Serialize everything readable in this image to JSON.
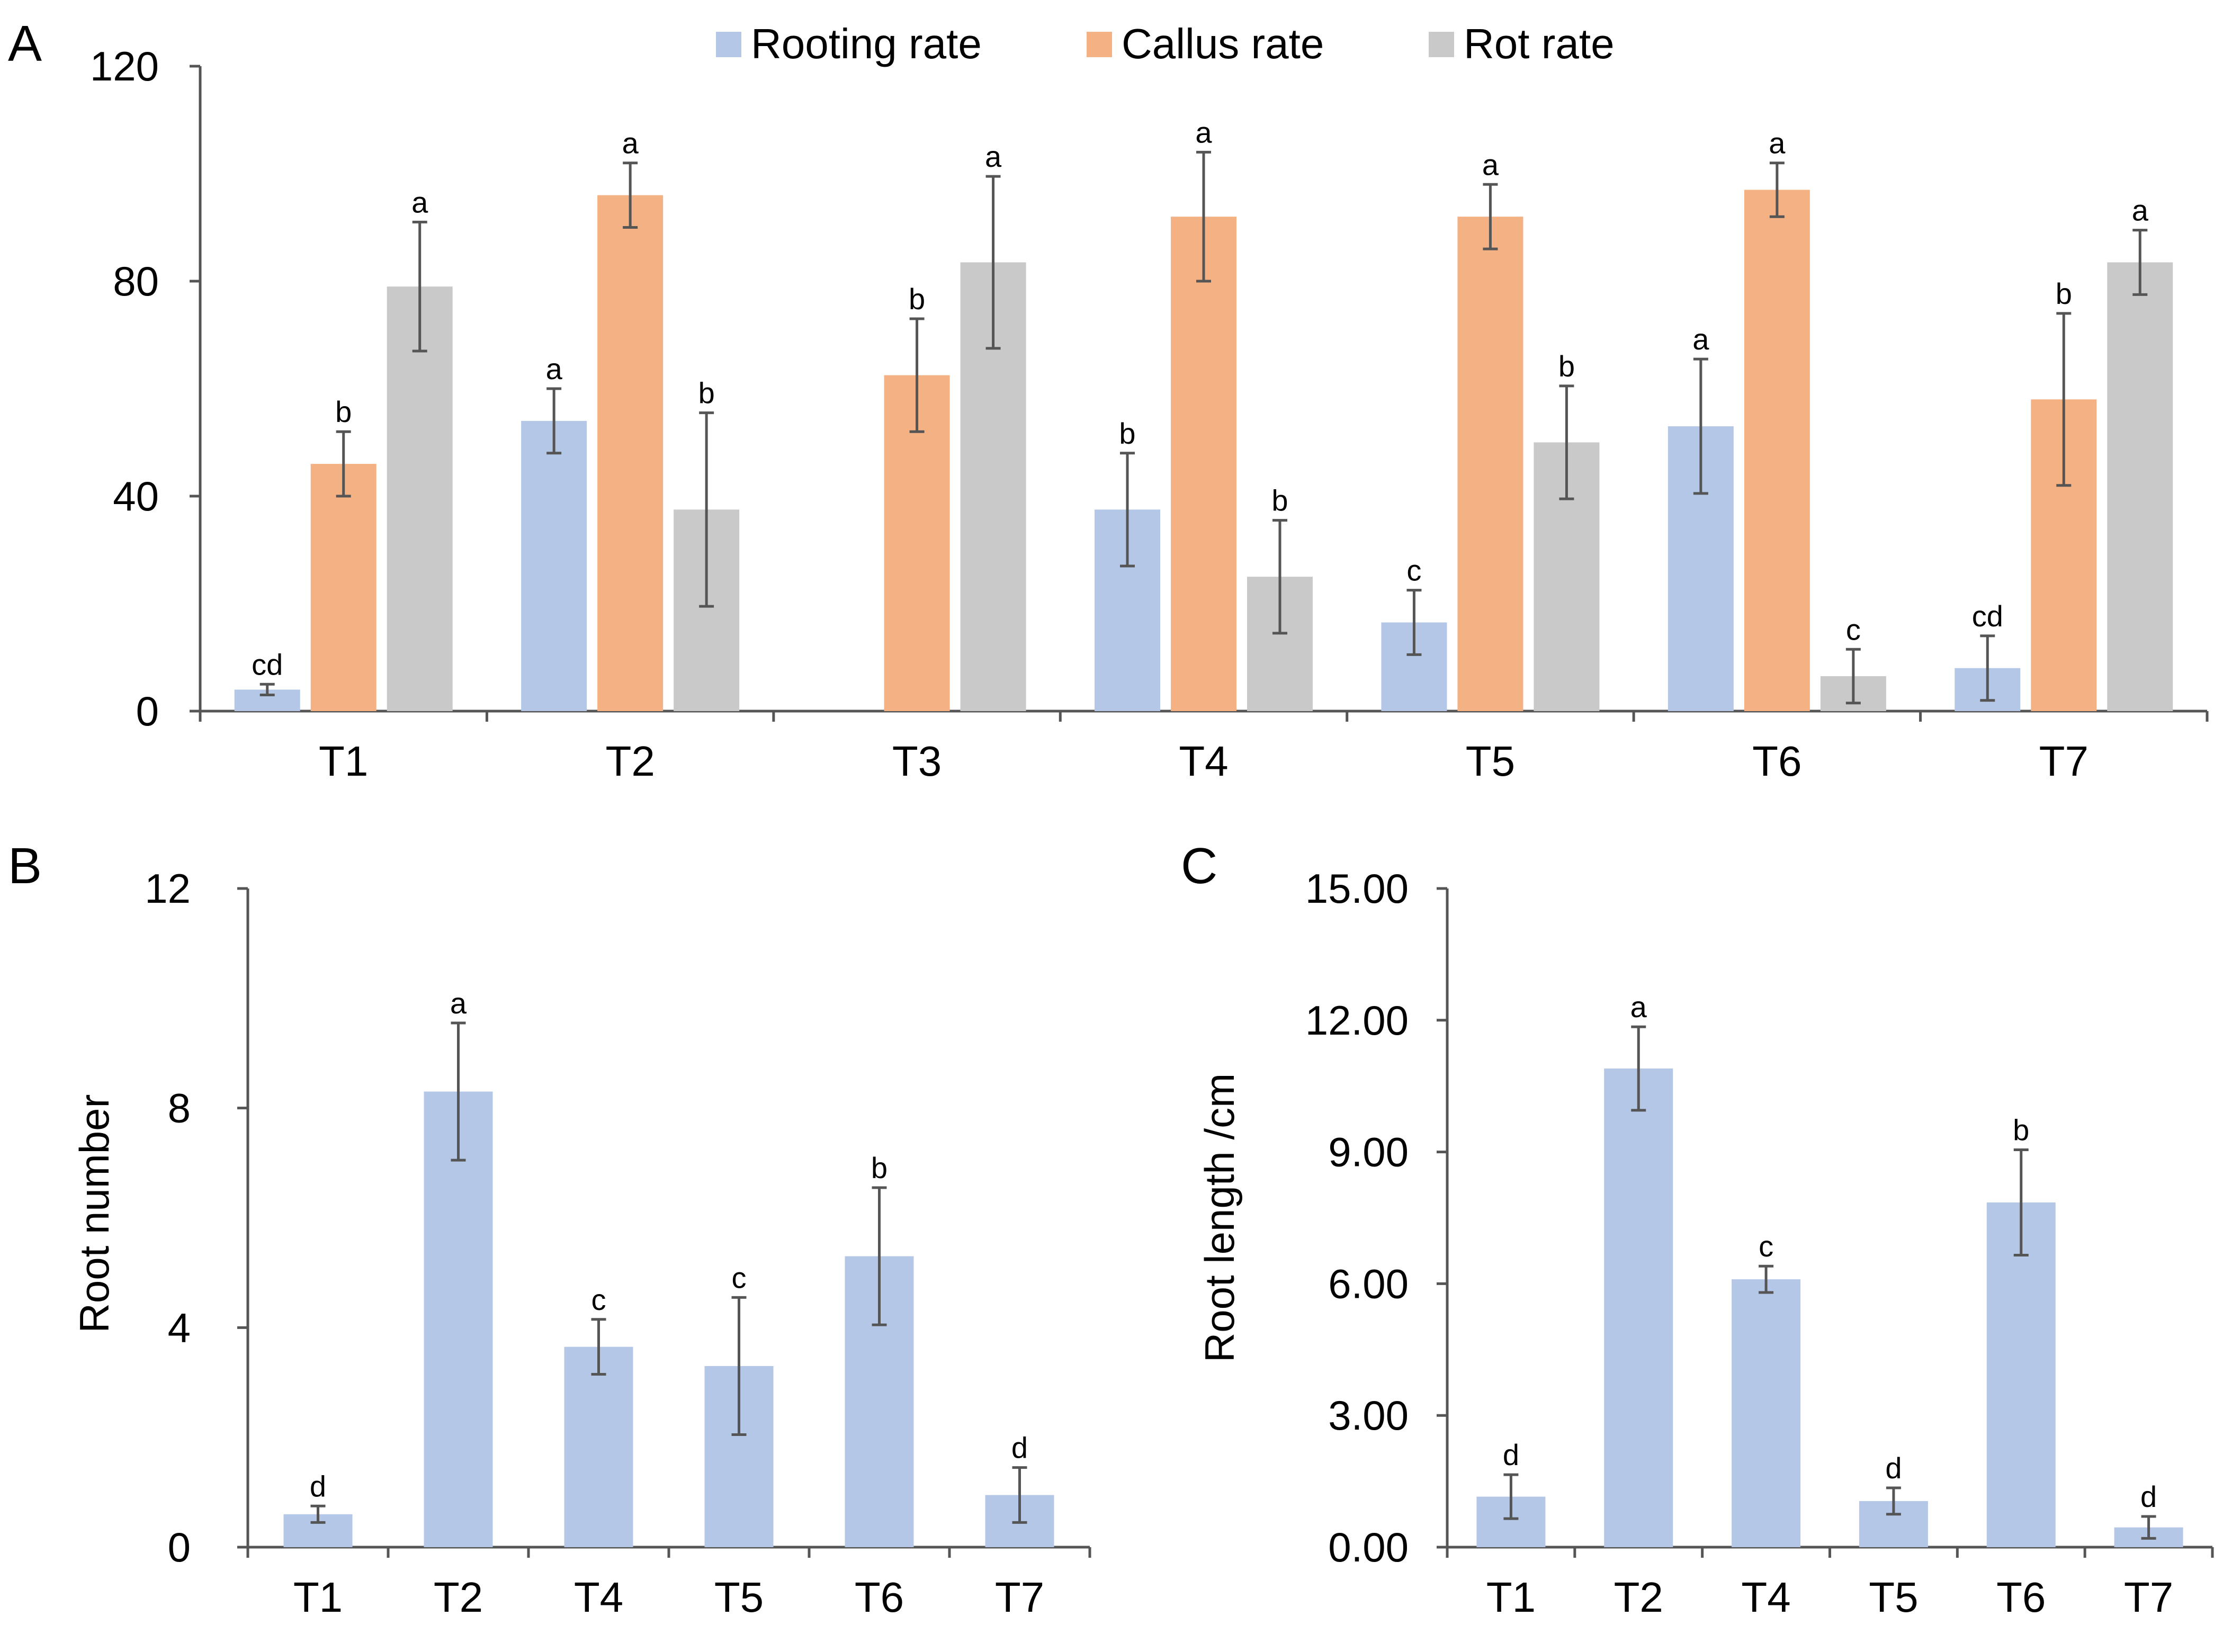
{
  "chart_data": [
    {
      "panel": "A",
      "type": "bar",
      "categories": [
        "T1",
        "T2",
        "T3",
        "T4",
        "T5",
        "T6",
        "T7"
      ],
      "ylim": [
        0,
        120
      ],
      "yticks": [
        "0",
        "40",
        "80",
        "120"
      ],
      "ylabel": "",
      "xlabel": "",
      "legend_position": "top",
      "series": [
        {
          "name": "Rooting rate",
          "color": "#b4c7e7",
          "values": [
            4,
            54,
            0,
            37.5,
            16.5,
            53,
            8
          ],
          "errors": [
            1,
            6,
            0,
            10.5,
            6,
            12.5,
            6
          ],
          "letters": [
            "cd",
            "a",
            "",
            "b",
            "c",
            "a",
            "cd"
          ]
        },
        {
          "name": "Callus rate",
          "color": "#f4b183",
          "values": [
            46,
            96,
            62.5,
            92,
            92,
            97,
            58
          ],
          "errors": [
            6,
            6,
            10.5,
            12,
            6,
            5,
            16
          ],
          "letters": [
            "b",
            "a",
            "b",
            "a",
            "a",
            "a",
            "b"
          ]
        },
        {
          "name": "Rot rate",
          "color": "#c9c9c9",
          "values": [
            79,
            37.5,
            83.5,
            25,
            50,
            6.5,
            83.5
          ],
          "errors": [
            12,
            18,
            16,
            10.5,
            10.5,
            5,
            6
          ],
          "letters": [
            "a",
            "b",
            "a",
            "b",
            "b",
            "c",
            "a"
          ]
        }
      ]
    },
    {
      "panel": "B",
      "type": "bar",
      "categories": [
        "T1",
        "T2",
        "T4",
        "T5",
        "T6",
        "T7"
      ],
      "ylim": [
        0,
        12
      ],
      "yticks": [
        "0",
        "4",
        "8",
        "12"
      ],
      "ylabel": "Root number",
      "xlabel": "",
      "series": [
        {
          "name": "Root number",
          "color": "#b4c7e7",
          "values": [
            0.6,
            8.3,
            3.65,
            3.3,
            5.3,
            0.95
          ],
          "errors": [
            0.15,
            1.25,
            0.5,
            1.25,
            1.25,
            0.5
          ],
          "letters": [
            "d",
            "a",
            "c",
            "c",
            "b",
            "d"
          ]
        }
      ]
    },
    {
      "panel": "C",
      "type": "bar",
      "categories": [
        "T1",
        "T2",
        "T4",
        "T5",
        "T6",
        "T7"
      ],
      "ylim": [
        0,
        15
      ],
      "yticks": [
        "0.00",
        "3.00",
        "6.00",
        "9.00",
        "12.00",
        "15.00"
      ],
      "ylabel": "Root  length /cm",
      "xlabel": "",
      "series": [
        {
          "name": "Root length",
          "color": "#b4c7e7",
          "values": [
            1.15,
            10.9,
            6.1,
            1.05,
            7.85,
            0.45
          ],
          "errors": [
            0.5,
            0.95,
            0.3,
            0.3,
            1.2,
            0.25
          ],
          "letters": [
            "d",
            "a",
            "c",
            "d",
            "b",
            "d"
          ]
        }
      ]
    }
  ]
}
